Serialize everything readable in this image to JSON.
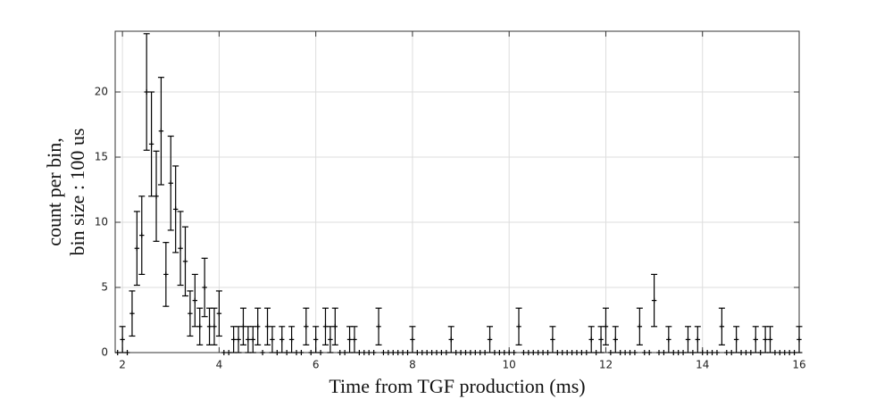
{
  "chart_data": {
    "type": "errorbar",
    "xlabel": "Time from TGF production (ms)",
    "ylabel": [
      "count per bin,",
      "bin size : 100 us"
    ],
    "xlim": [
      1.85,
      16
    ],
    "ylim": [
      0,
      24.66
    ],
    "xticks": [
      2,
      4,
      6,
      8,
      10,
      12,
      14,
      16
    ],
    "yticks": [
      0,
      5,
      10,
      15,
      20
    ],
    "grid": true,
    "x": [
      1.9,
      2,
      2.1,
      2.2,
      2.3,
      2.4,
      2.5,
      2.6,
      2.7,
      2.8,
      2.9,
      3,
      3.1,
      3.2,
      3.3,
      3.4,
      3.5,
      3.6,
      3.7,
      3.8,
      3.9,
      4,
      4.1,
      4.2,
      4.3,
      4.4,
      4.5,
      4.6,
      4.7,
      4.8,
      4.9,
      5,
      5.1,
      5.2,
      5.3,
      5.4,
      5.5,
      5.6,
      5.7,
      5.8,
      5.9,
      6,
      6.1,
      6.2,
      6.3,
      6.4,
      6.5,
      6.6,
      6.7,
      6.8,
      6.9,
      7,
      7.1,
      7.2,
      7.3,
      7.4,
      7.5,
      7.6,
      7.7,
      7.8,
      7.9,
      8,
      8.1,
      8.2,
      8.3,
      8.4,
      8.5,
      8.6,
      8.7,
      8.8,
      8.9,
      9,
      9.1,
      9.2,
      9.3,
      9.4,
      9.5,
      9.6,
      9.7,
      9.8,
      9.9,
      10,
      10.1,
      10.2,
      10.3,
      10.4,
      10.5,
      10.6,
      10.7,
      10.8,
      10.9,
      11,
      11.1,
      11.2,
      11.3,
      11.4,
      11.5,
      11.6,
      11.7,
      11.8,
      11.9,
      12,
      12.1,
      12.2,
      12.3,
      12.4,
      12.5,
      12.6,
      12.7,
      12.8,
      12.9,
      13,
      13.1,
      13.2,
      13.3,
      13.4,
      13.5,
      13.6,
      13.7,
      13.8,
      13.9,
      14,
      14.1,
      14.2,
      14.3,
      14.4,
      14.5,
      14.6,
      14.7,
      14.8,
      14.9,
      15,
      15.1,
      15.2,
      15.3,
      15.4,
      15.5,
      15.6,
      15.7,
      15.8,
      15.9,
      16
    ],
    "xerr": 0.05,
    "series": [
      {
        "color": "#000000",
        "values": [
          0,
          1,
          0,
          3,
          8,
          9,
          20,
          16,
          12,
          17,
          6,
          13,
          11,
          8,
          7,
          3,
          4,
          2,
          5,
          2,
          2,
          3,
          0,
          0,
          1,
          1,
          2,
          1,
          1,
          2,
          0,
          2,
          1,
          0,
          1,
          0,
          1,
          0,
          0,
          2,
          0,
          1,
          0,
          2,
          1,
          2,
          0,
          0,
          1,
          1,
          0,
          0,
          0,
          0,
          2,
          0,
          0,
          0,
          0,
          0,
          0,
          1,
          0,
          0,
          0,
          0,
          0,
          0,
          0,
          1,
          0,
          0,
          0,
          0,
          0,
          0,
          0,
          1,
          0,
          0,
          0,
          0,
          0,
          2,
          0,
          0,
          0,
          0,
          0,
          0,
          1,
          0,
          0,
          0,
          0,
          0,
          0,
          0,
          1,
          0,
          1,
          2,
          0,
          1,
          0,
          0,
          0,
          0,
          2,
          0,
          0,
          4,
          0,
          0,
          1,
          0,
          0,
          0,
          1,
          0,
          1,
          0,
          0,
          0,
          0,
          2,
          0,
          0,
          1,
          0,
          0,
          0,
          1,
          0,
          1,
          1,
          0,
          0,
          0,
          0,
          0,
          1
        ],
        "errors": [
          0,
          1,
          0,
          1.73,
          2.83,
          3,
          4.47,
          4,
          3.46,
          4.12,
          2.45,
          3.61,
          3.32,
          2.83,
          2.65,
          1.73,
          2,
          1.41,
          2.24,
          1.41,
          1.41,
          1.73,
          0,
          0,
          1,
          1,
          1.41,
          1,
          1,
          1.41,
          0,
          1.41,
          1,
          0,
          1,
          0,
          1,
          0,
          0,
          1.41,
          0,
          1,
          0,
          1.41,
          1,
          1.41,
          0,
          0,
          1,
          1,
          0,
          0,
          0,
          0,
          1.41,
          0,
          0,
          0,
          0,
          0,
          0,
          1,
          0,
          0,
          0,
          0,
          0,
          0,
          0,
          1,
          0,
          0,
          0,
          0,
          0,
          0,
          0,
          1,
          0,
          0,
          0,
          0,
          0,
          1.41,
          0,
          0,
          0,
          0,
          0,
          0,
          1,
          0,
          0,
          0,
          0,
          0,
          0,
          0,
          1,
          0,
          1,
          1.41,
          0,
          1,
          0,
          0,
          0,
          0,
          1.41,
          0,
          0,
          2,
          0,
          0,
          1,
          0,
          0,
          0,
          1,
          0,
          1,
          0,
          0,
          0,
          0,
          1.41,
          0,
          0,
          1,
          0,
          0,
          0,
          1,
          0,
          1,
          1,
          0,
          0,
          0,
          0,
          0,
          1
        ]
      }
    ]
  }
}
